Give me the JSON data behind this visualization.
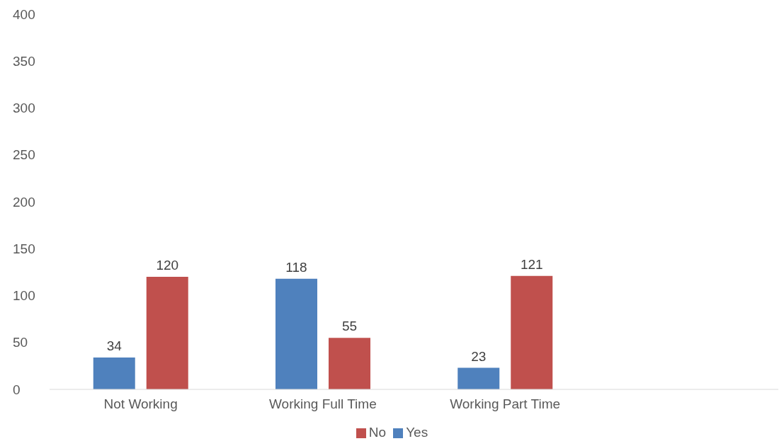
{
  "chart_data": {
    "type": "bar",
    "categories": [
      "Not Working",
      "Working Full Time",
      "Working Part Time",
      null
    ],
    "series": [
      {
        "name": "Yes",
        "color": "#4f81bd",
        "values": [
          34,
          118,
          23,
          null
        ]
      },
      {
        "name": "No",
        "color": "#c0504d",
        "values": [
          120,
          55,
          121,
          null
        ]
      }
    ],
    "ylim": [
      0,
      400
    ],
    "yticks": [
      0,
      50,
      100,
      150,
      200,
      250,
      300,
      350,
      400
    ],
    "legend": "bottom",
    "data_labels": true
  }
}
